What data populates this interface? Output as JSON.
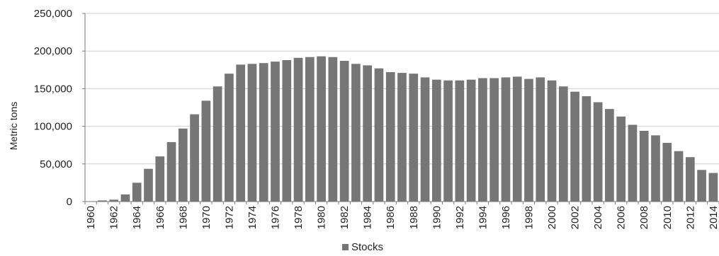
{
  "chart_data": {
    "type": "bar",
    "title": "",
    "xlabel": "",
    "ylabel": "Metric tons",
    "ylim": [
      0,
      250000
    ],
    "yticks": [
      0,
      50000,
      100000,
      150000,
      200000,
      250000
    ],
    "ytick_labels": [
      "0",
      "50,000",
      "100,000",
      "150,000",
      "200,000",
      "250,000"
    ],
    "grid": true,
    "legend_position": "bottom",
    "bar_color": "#767676",
    "categories": [
      "1960",
      "1961",
      "1962",
      "1963",
      "1964",
      "1965",
      "1966",
      "1967",
      "1968",
      "1969",
      "1970",
      "1971",
      "1972",
      "1973",
      "1974",
      "1975",
      "1976",
      "1977",
      "1978",
      "1979",
      "1980",
      "1981",
      "1982",
      "1983",
      "1984",
      "1985",
      "1986",
      "1987",
      "1988",
      "1989",
      "1990",
      "1991",
      "1992",
      "1993",
      "1994",
      "1995",
      "1996",
      "1997",
      "1998",
      "1999",
      "2000",
      "2001",
      "2002",
      "2003",
      "2004",
      "2005",
      "2006",
      "2007",
      "2008",
      "2009",
      "2010",
      "2011",
      "2012",
      "2013",
      "2014"
    ],
    "x_tick_labels": [
      "1960",
      "1962",
      "1964",
      "1966",
      "1968",
      "1970",
      "1972",
      "1974",
      "1976",
      "1978",
      "1980",
      "1982",
      "1984",
      "1986",
      "1988",
      "1990",
      "1992",
      "1994",
      "1996",
      "1998",
      "2000",
      "2002",
      "2004",
      "2006",
      "2008",
      "2010",
      "2012",
      "2014"
    ],
    "series": [
      {
        "name": "Stocks",
        "color": "#767676",
        "values": [
          0,
          1500,
          2500,
          9500,
          25000,
          43500,
          60000,
          79000,
          97000,
          116000,
          134000,
          153000,
          170000,
          182000,
          183000,
          184000,
          186000,
          188000,
          191000,
          192000,
          193000,
          192000,
          187000,
          183000,
          181000,
          177000,
          172000,
          171000,
          170000,
          165000,
          162000,
          161000,
          161000,
          162000,
          164000,
          164000,
          165000,
          166000,
          163000,
          165000,
          161000,
          153000,
          146000,
          140000,
          132000,
          123000,
          113000,
          102000,
          94000,
          88000,
          78000,
          67000,
          59000,
          42000,
          38000
        ]
      }
    ]
  }
}
